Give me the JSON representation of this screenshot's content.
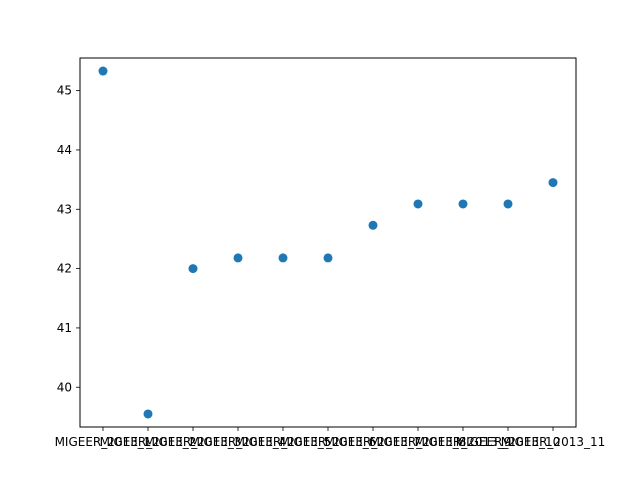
{
  "chart_data": {
    "type": "scatter",
    "title": "",
    "xlabel": "",
    "ylabel": "",
    "categories": [
      "MIGEER_2013_1",
      "MIGEER_2013_2",
      "MIGEER_2013_3",
      "MIGEER_2013_4",
      "MIGEER_2013_5",
      "MIGEER_2013_6",
      "MIGEER_2013_7",
      "MIGEER_2013_8",
      "MIGEER_2013_9",
      "MIGEER_2013_10",
      "MIGEER_2013_11"
    ],
    "values": [
      45.33,
      39.55,
      42.0,
      42.18,
      42.18,
      42.18,
      42.73,
      43.09,
      43.09,
      43.09,
      43.45
    ],
    "ylim": [
      39.33,
      45.55
    ],
    "yticks": [
      40,
      41,
      42,
      43,
      44,
      45
    ],
    "grid": false,
    "legend": "none",
    "marker_color": "#1f77b4"
  }
}
